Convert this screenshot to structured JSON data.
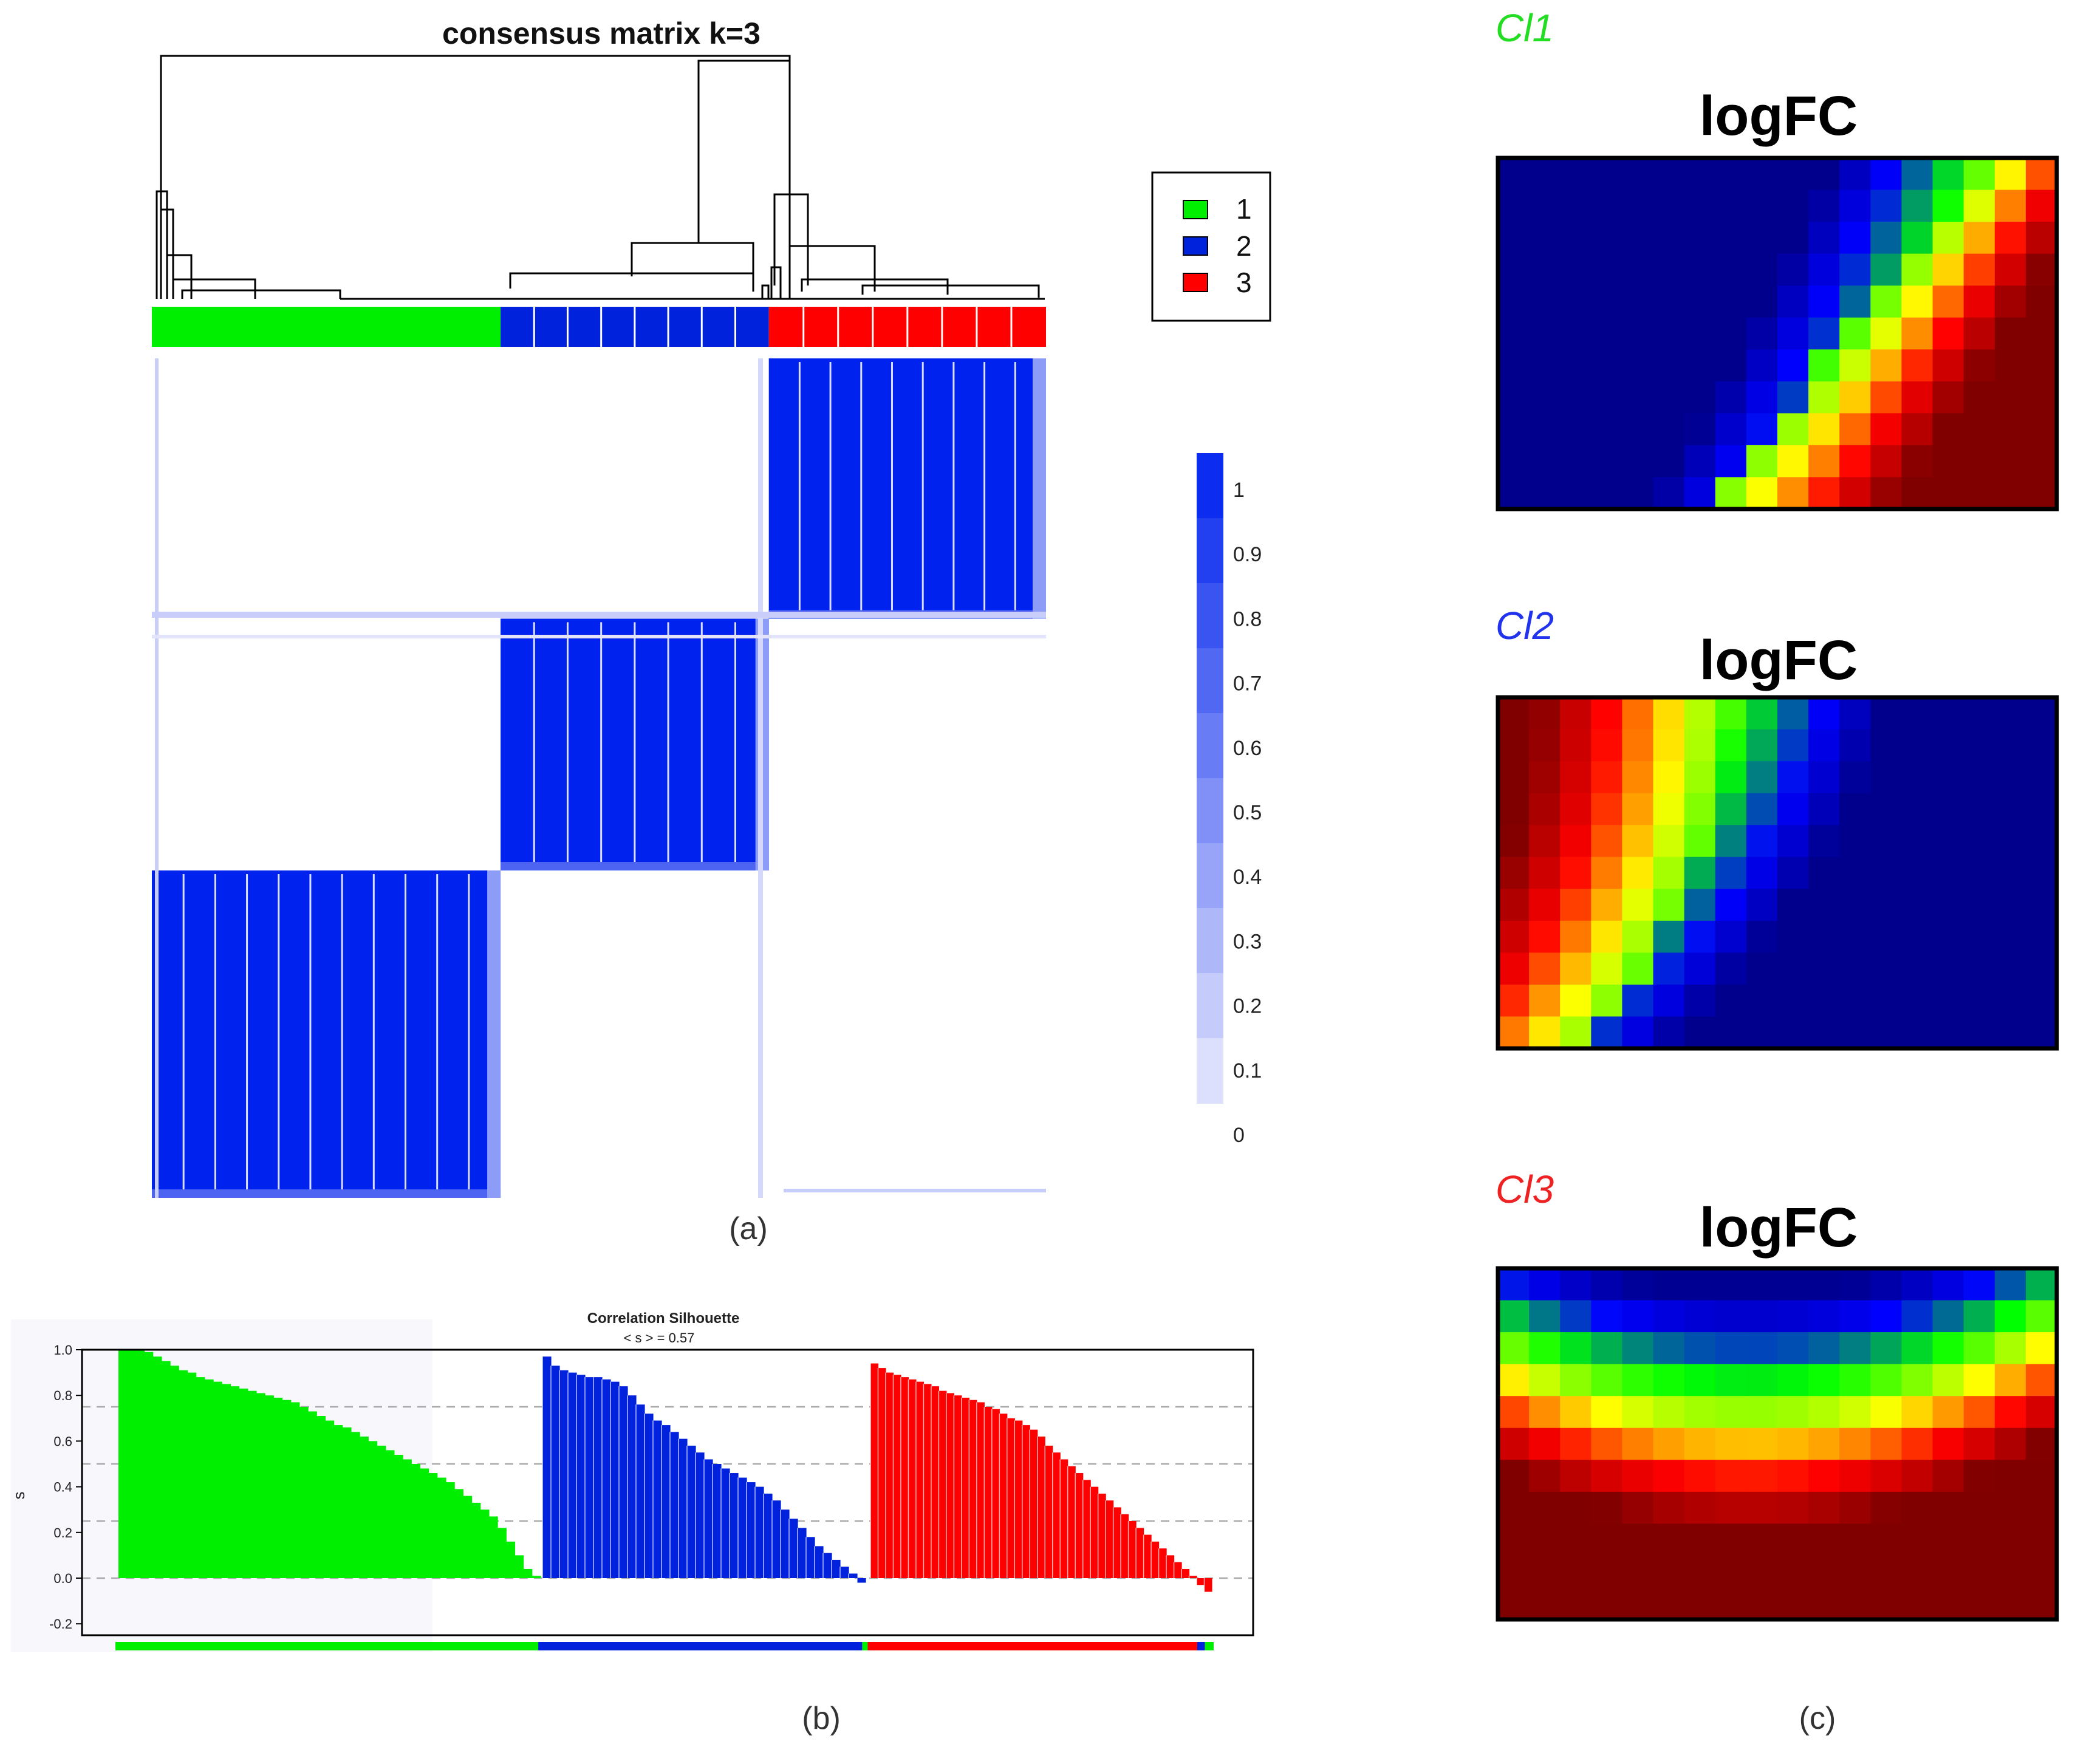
{
  "panel_a": {
    "caption": "(a)",
    "chart_data": {
      "type": "heatmap",
      "title": "consensus matrix k=3",
      "clusters": [
        {
          "id": "1",
          "color": "#00ee00",
          "fraction": 0.39
        },
        {
          "id": "2",
          "color": "#0022dd",
          "fraction": 0.3
        },
        {
          "id": "3",
          "color": "#ff0000",
          "fraction": 0.31
        }
      ],
      "legend": {
        "position": "right",
        "entries": [
          "1",
          "2",
          "3"
        ]
      },
      "colorbar": {
        "min": 0,
        "max": 1,
        "ticks": [
          "1",
          "0.9",
          "0.8",
          "0.7",
          "0.6",
          "0.5",
          "0.4",
          "0.3",
          "0.2",
          "0.1",
          "0"
        ],
        "low_color": "#ffffff",
        "high_color": "#0022ee"
      },
      "blocks": [
        {
          "cluster": "1",
          "value": 1.0
        },
        {
          "cluster": "2",
          "value": 1.0
        },
        {
          "cluster": "3",
          "value": 1.0
        }
      ],
      "off_block_value": 0.0
    }
  },
  "panel_b": {
    "caption": "(b)",
    "chart_data": {
      "type": "bar",
      "title": "Correlation Silhouette",
      "subtitle": "< s > =  0.57",
      "xlabel": "",
      "ylabel": "s",
      "ylim": [
        -0.25,
        1.0
      ],
      "yticks": [
        "1.0",
        "0.8",
        "0.6",
        "0.4",
        "0.2",
        "0.0",
        "-0.2"
      ],
      "reference_lines": [
        0.0,
        0.25,
        0.5,
        0.75
      ],
      "series": [
        {
          "name": "1",
          "color": "#00ee00",
          "values": [
            1.0,
            1.0,
            1.0,
            0.99,
            0.97,
            0.95,
            0.93,
            0.91,
            0.9,
            0.88,
            0.87,
            0.86,
            0.85,
            0.84,
            0.83,
            0.82,
            0.81,
            0.8,
            0.79,
            0.78,
            0.77,
            0.75,
            0.73,
            0.71,
            0.69,
            0.67,
            0.66,
            0.64,
            0.62,
            0.6,
            0.58,
            0.56,
            0.54,
            0.52,
            0.5,
            0.48,
            0.46,
            0.44,
            0.42,
            0.39,
            0.36,
            0.33,
            0.3,
            0.27,
            0.22,
            0.16,
            0.1,
            0.04,
            0.01
          ]
        },
        {
          "name": "2",
          "color": "#0022dd",
          "values": [
            0.97,
            0.93,
            0.91,
            0.9,
            0.89,
            0.88,
            0.88,
            0.87,
            0.86,
            0.84,
            0.8,
            0.76,
            0.72,
            0.69,
            0.67,
            0.64,
            0.61,
            0.58,
            0.55,
            0.52,
            0.5,
            0.48,
            0.46,
            0.44,
            0.42,
            0.4,
            0.37,
            0.34,
            0.3,
            0.26,
            0.22,
            0.18,
            0.14,
            0.11,
            0.08,
            0.05,
            0.02,
            -0.02
          ]
        },
        {
          "name": "3",
          "color": "#ff0000",
          "values": [
            0.94,
            0.92,
            0.9,
            0.89,
            0.88,
            0.87,
            0.86,
            0.85,
            0.84,
            0.82,
            0.81,
            0.8,
            0.79,
            0.78,
            0.77,
            0.75,
            0.74,
            0.72,
            0.7,
            0.69,
            0.67,
            0.65,
            0.62,
            0.58,
            0.55,
            0.52,
            0.49,
            0.46,
            0.43,
            0.4,
            0.37,
            0.34,
            0.31,
            0.28,
            0.25,
            0.22,
            0.19,
            0.16,
            0.13,
            0.1,
            0.07,
            0.04,
            0.01,
            -0.03,
            -0.06
          ]
        }
      ],
      "membership_strip": [
        {
          "color": "#00ee00",
          "fraction": 0.385
        },
        {
          "color": "#0022dd",
          "fraction": 0.295
        },
        {
          "color": "#00ee00",
          "fraction": 0.005
        },
        {
          "color": "#ff0000",
          "fraction": 0.3
        },
        {
          "color": "#0022dd",
          "fraction": 0.007
        },
        {
          "color": "#00ee00",
          "fraction": 0.008
        }
      ]
    }
  },
  "panel_c": {
    "caption": "(c)",
    "chart_data": [
      {
        "type": "heatmap",
        "label": "Cl1",
        "label_color": "#22dd22",
        "title": "logFC",
        "pattern": "rising-right",
        "colorscale": [
          "#000080",
          "#0000ff",
          "#00ff00",
          "#ffff00",
          "#ff0000",
          "#800000"
        ]
      },
      {
        "type": "heatmap",
        "label": "Cl2",
        "label_color": "#2233ee",
        "title": "logFC",
        "pattern": "falling-right",
        "colorscale": [
          "#000080",
          "#0000ff",
          "#00ff00",
          "#ffff00",
          "#ff0000",
          "#800000"
        ]
      },
      {
        "type": "heatmap",
        "label": "Cl3",
        "label_color": "#ee2222",
        "title": "logFC",
        "pattern": "arch",
        "colorscale": [
          "#000080",
          "#0000ff",
          "#00ff00",
          "#ffff00",
          "#ff0000",
          "#800000"
        ]
      }
    ]
  }
}
